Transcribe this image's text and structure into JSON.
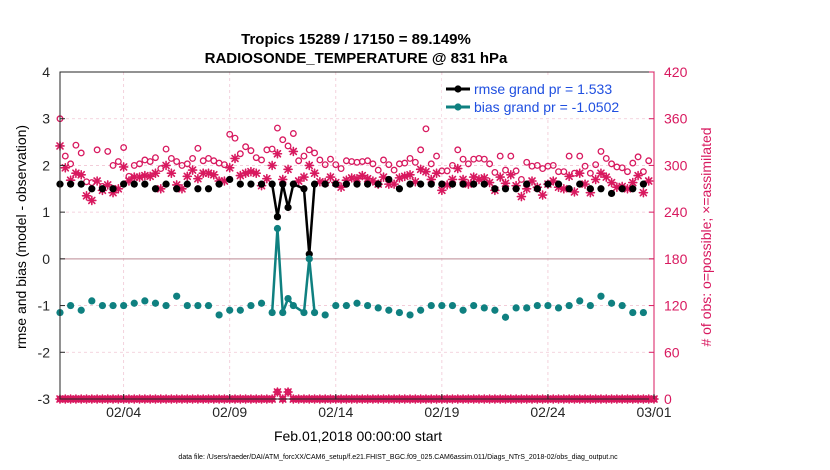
{
  "chart_data": {
    "type": "line",
    "title_line1": "Tropics 15289 / 17150 = 89.149%",
    "title_line2": "RADIOSONDE_TEMPERATURE @ 831 hPa",
    "xlabel": "Feb.01,2018 00:00:00 start",
    "ylabel_left": "rmse and bias (model - observation)",
    "ylabel_right": "# of obs: o=possible; ×=assimilated",
    "xlim": [
      1,
      29
    ],
    "ylim_left": [
      -3,
      4
    ],
    "ylim_right": [
      0,
      420
    ],
    "x_ticks": [
      {
        "value": 4,
        "label": "02/04"
      },
      {
        "value": 9,
        "label": "02/09"
      },
      {
        "value": 14,
        "label": "02/14"
      },
      {
        "value": 19,
        "label": "02/19"
      },
      {
        "value": 24,
        "label": "02/24"
      },
      {
        "value": 29,
        "label": "03/01"
      }
    ],
    "y_ticks_left": [
      "4",
      "3",
      "2",
      "1",
      "0",
      "-1",
      "-2",
      "-3"
    ],
    "y_ticks_right": [
      "420",
      "360",
      "300",
      "240",
      "180",
      "120",
      "60",
      "0"
    ],
    "colors": {
      "rmse": "#000000",
      "bias": "#0f8080",
      "obs": "#d8195f",
      "legend_text": "#1f4fe0",
      "zero_line": "#c8a0a8",
      "grid": "#f0c6d4"
    },
    "legend": [
      {
        "name": "rmse grand pr = 1.533",
        "key": "rmse"
      },
      {
        "name": "bias grand pr = -1.0502",
        "key": "bias"
      }
    ],
    "x": [
      1.0,
      1.25,
      1.5,
      1.75,
      2.0,
      2.25,
      2.5,
      2.75,
      3.0,
      3.25,
      3.5,
      3.75,
      4.0,
      4.25,
      4.5,
      4.75,
      5.0,
      5.25,
      5.5,
      5.75,
      6.0,
      6.25,
      6.5,
      6.75,
      7.0,
      7.25,
      7.5,
      7.75,
      8.0,
      8.25,
      8.5,
      8.75,
      9.0,
      9.25,
      9.5,
      9.75,
      10.0,
      10.25,
      10.5,
      10.75,
      11.0,
      11.25,
      11.5,
      11.75,
      12.0,
      12.25,
      12.5,
      12.75,
      13.0,
      13.25,
      13.5,
      13.75,
      14.0,
      14.25,
      14.5,
      14.75,
      15.0,
      15.25,
      15.5,
      15.75,
      16.0,
      16.25,
      16.5,
      16.75,
      17.0,
      17.25,
      17.5,
      17.75,
      18.0,
      18.25,
      18.5,
      18.75,
      19.0,
      19.25,
      19.5,
      19.75,
      20.0,
      20.25,
      20.5,
      20.75,
      21.0,
      21.25,
      21.5,
      21.75,
      22.0,
      22.25,
      22.5,
      22.75,
      23.0,
      23.25,
      23.5,
      23.75,
      24.0,
      24.25,
      24.5,
      24.75,
      25.0,
      25.25,
      25.5,
      25.75,
      26.0,
      26.25,
      26.5,
      26.75,
      27.0,
      27.25,
      27.5,
      27.75,
      28.0,
      28.25,
      28.5,
      28.75
    ],
    "series": [
      {
        "name": "rmse",
        "values": [
          1.6,
          null,
          1.6,
          null,
          1.6,
          null,
          1.5,
          null,
          1.5,
          null,
          1.5,
          null,
          1.6,
          null,
          1.6,
          null,
          1.6,
          null,
          1.5,
          null,
          1.6,
          null,
          1.5,
          null,
          1.6,
          null,
          1.5,
          null,
          1.5,
          null,
          1.6,
          null,
          1.7,
          null,
          1.6,
          null,
          1.6,
          null,
          1.6,
          null,
          1.6,
          0.9,
          1.6,
          1.1,
          1.6,
          null,
          1.5,
          0.1,
          1.6,
          null,
          1.6,
          null,
          1.6,
          null,
          1.6,
          null,
          1.6,
          null,
          1.6,
          null,
          1.6,
          null,
          1.7,
          null,
          1.5,
          null,
          1.6,
          null,
          1.6,
          null,
          1.6,
          null,
          1.6,
          null,
          1.6,
          null,
          1.6,
          null,
          1.6,
          null,
          1.6,
          null,
          1.5,
          null,
          1.5,
          null,
          1.5,
          null,
          1.6,
          null,
          1.5,
          null,
          1.6,
          null,
          1.6,
          null,
          1.5,
          null,
          1.6,
          null,
          1.5,
          null,
          1.5,
          null,
          1.4,
          null,
          1.5,
          null,
          1.5,
          null,
          1.6,
          null
        ]
      },
      {
        "name": "bias",
        "values": [
          -1.15,
          null,
          -1.0,
          null,
          -1.1,
          null,
          -0.9,
          null,
          -1.0,
          null,
          -1.0,
          null,
          -1.0,
          null,
          -0.95,
          null,
          -0.9,
          null,
          -0.95,
          null,
          -1.0,
          null,
          -0.8,
          null,
          -1.0,
          null,
          -1.0,
          null,
          -1.0,
          null,
          -1.2,
          null,
          -1.1,
          null,
          -1.1,
          null,
          -1.0,
          null,
          -0.95,
          null,
          -1.15,
          0.65,
          -1.15,
          -0.85,
          -1.0,
          null,
          -1.15,
          0.0,
          -1.15,
          null,
          -1.2,
          null,
          -1.0,
          null,
          -1.0,
          null,
          -0.95,
          null,
          -1.0,
          null,
          -1.05,
          null,
          -1.1,
          null,
          -1.15,
          null,
          -1.2,
          null,
          -1.1,
          null,
          -1.0,
          null,
          -1.0,
          null,
          -1.0,
          null,
          -1.1,
          null,
          -1.0,
          null,
          -1.05,
          null,
          -1.1,
          null,
          -1.25,
          null,
          -1.05,
          null,
          -1.05,
          null,
          -1.0,
          null,
          -1.0,
          null,
          -1.05,
          null,
          -1.0,
          null,
          -0.9,
          null,
          -1.0,
          null,
          -0.8,
          null,
          -0.95,
          null,
          -1.0,
          null,
          -1.15,
          null,
          -1.15,
          null
        ]
      },
      {
        "name": "obs possible",
        "values": [
          360,
          312,
          302,
          326,
          316,
          279,
          278,
          320,
          273,
          318,
          300,
          305,
          323,
          286,
          300,
          302,
          307,
          305,
          310,
          296,
          321,
          309,
          305,
          300,
          302,
          309,
          322,
          306,
          309,
          306,
          303,
          301,
          340,
          335,
          315,
          324,
          319,
          310,
          307,
          320,
          321,
          348,
          333,
          325,
          341,
          306,
          312,
          320,
          316,
          307,
          301,
          308,
          301,
          296,
          306,
          305,
          304,
          305,
          306,
          302,
          294,
          307,
          301,
          294,
          302,
          303,
          309,
          304,
          320,
          347,
          302,
          312,
          293,
          293,
          300,
          320,
          308,
          302,
          308,
          309,
          308,
          302,
          291,
          312,
          294,
          312,
          293,
          282,
          304,
          299,
          300,
          296,
          299,
          300,
          292,
          292,
          312,
          290,
          312,
          299,
          290,
          301,
          318,
          309,
          302,
          298,
          297,
          292,
          303,
          311,
          292,
          306
        ]
      },
      {
        "name": "obs assimilated",
        "values": [
          325,
          297,
          281,
          290,
          288,
          261,
          255,
          280,
          268,
          275,
          265,
          270,
          298,
          280,
          285,
          285,
          287,
          286,
          290,
          270,
          300,
          290,
          275,
          270,
          286,
          294,
          283,
          290,
          290,
          288,
          280,
          280,
          297,
          309,
          287,
          290,
          292,
          290,
          274,
          283,
          300,
          315,
          282,
          295,
          318,
          280,
          285,
          300,
          290,
          279,
          278,
          285,
          278,
          272,
          281,
          284,
          283,
          287,
          283,
          280,
          276,
          285,
          276,
          276,
          284,
          286,
          288,
          279,
          295,
          292,
          282,
          290,
          268,
          275,
          282,
          296,
          282,
          276,
          285,
          282,
          284,
          278,
          268,
          285,
          277,
          288,
          274,
          260,
          270,
          280,
          272,
          262,
          276,
          280,
          272,
          270,
          286,
          266,
          290,
          276,
          265,
          282,
          290,
          285,
          278,
          272,
          273,
          270,
          278,
          287,
          265,
          280
        ]
      },
      {
        "name": "obs possible (bottom)",
        "x": [
          1,
          1.25,
          1.5,
          1.75,
          2,
          2.25,
          2.5,
          2.75,
          3,
          3.25,
          3.5,
          3.75,
          4,
          4.25,
          4.5,
          4.75,
          5,
          5.25,
          5.5,
          5.75,
          6,
          6.25,
          6.5,
          6.75,
          7,
          7.25,
          7.5,
          7.75,
          8,
          8.25,
          8.5,
          8.75,
          9,
          9.25,
          9.5,
          9.75,
          10,
          10.25,
          10.5,
          10.75,
          11,
          11.25,
          11.5,
          11.75,
          12,
          12.25,
          12.5,
          12.75,
          13,
          13.25,
          13.5,
          13.75,
          14,
          14.25,
          14.5,
          14.75,
          15,
          15.25,
          15.5,
          15.75,
          16,
          16.25,
          16.5,
          16.75,
          17,
          17.25,
          17.5,
          17.75,
          18,
          18.25,
          18.5,
          18.75,
          19,
          19.25,
          19.5,
          19.75,
          20,
          20.25,
          20.5,
          20.75,
          21,
          21.25,
          21.5,
          21.75,
          22,
          22.25,
          22.5,
          22.75,
          23,
          23.25,
          23.5,
          23.75,
          24,
          24.25,
          24.5,
          24.75,
          25,
          25.25,
          25.5,
          25.75,
          26,
          26.25,
          26.5,
          26.75,
          27,
          27.25,
          27.5,
          27.75,
          28,
          28.25,
          28.5,
          28.75,
          29
        ],
        "values": [
          0,
          0,
          0,
          0,
          0,
          0,
          0,
          0,
          0,
          0,
          0,
          0,
          0,
          0,
          0,
          0,
          0,
          0,
          0,
          0,
          0,
          0,
          0,
          0,
          0,
          0,
          0,
          0,
          0,
          0,
          0,
          0,
          0,
          0,
          0,
          0,
          0,
          0,
          0,
          0,
          0,
          9,
          0,
          9,
          0,
          0,
          0,
          0,
          0,
          0,
          0,
          0,
          0,
          0,
          0,
          0,
          0,
          0,
          0,
          0,
          0,
          0,
          0,
          0,
          0,
          0,
          0,
          0,
          0,
          0,
          0,
          0,
          0,
          0,
          0,
          0,
          0,
          0,
          0,
          0,
          0,
          0,
          0,
          0,
          0,
          0,
          0,
          0,
          0,
          0,
          0,
          0,
          0,
          0,
          0,
          0,
          0,
          0,
          0,
          0,
          0,
          0,
          0,
          0,
          0,
          0,
          0,
          0,
          0,
          0,
          0,
          0,
          0
        ]
      }
    ],
    "footnote": "data file: /Users/raeder/DAI/ATM_forcXX/CAM6_setup/f.e21.FHIST_BGC.f09_025.CAM6assim.011/Diags_NTrS_2018-02/obs_diag_output.nc"
  }
}
